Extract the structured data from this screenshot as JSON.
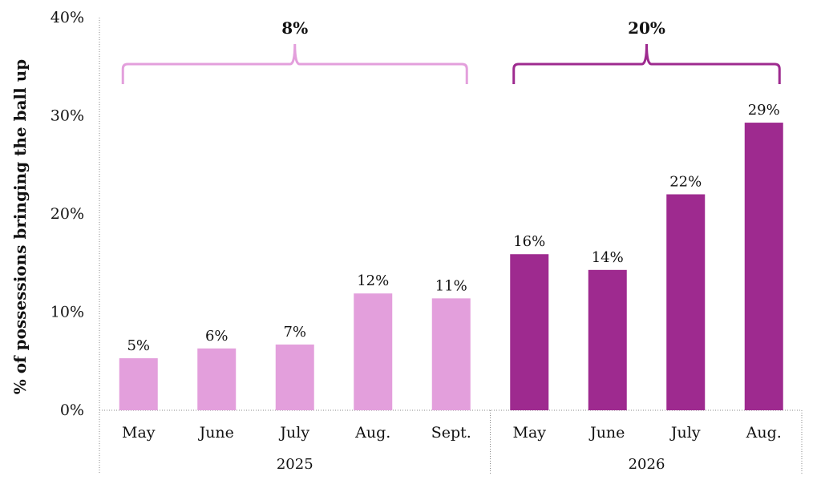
{
  "chart_data": {
    "type": "bar",
    "ylabel": "% of possessions bringing the ball up",
    "ylim": [
      0,
      40
    ],
    "yticks": [
      "0%",
      "10%",
      "20%",
      "30%",
      "40%"
    ],
    "grid": false,
    "groups": [
      {
        "name": "2025",
        "color": "#E39FDC",
        "categories": [
          "May",
          "June",
          "July",
          "Aug.",
          "Sept."
        ],
        "values": [
          5.3,
          6.3,
          6.7,
          11.9,
          11.4
        ],
        "labels": [
          "5%",
          "6%",
          "7%",
          "12%",
          "11%"
        ],
        "brace_label": "8%"
      },
      {
        "name": "2026",
        "color": "#9E2A8F",
        "categories": [
          "May",
          "June",
          "July",
          "Aug."
        ],
        "values": [
          15.9,
          14.3,
          22.0,
          29.3
        ],
        "labels": [
          "16%",
          "14%",
          "22%",
          "29%"
        ],
        "brace_label": "20%"
      }
    ]
  }
}
